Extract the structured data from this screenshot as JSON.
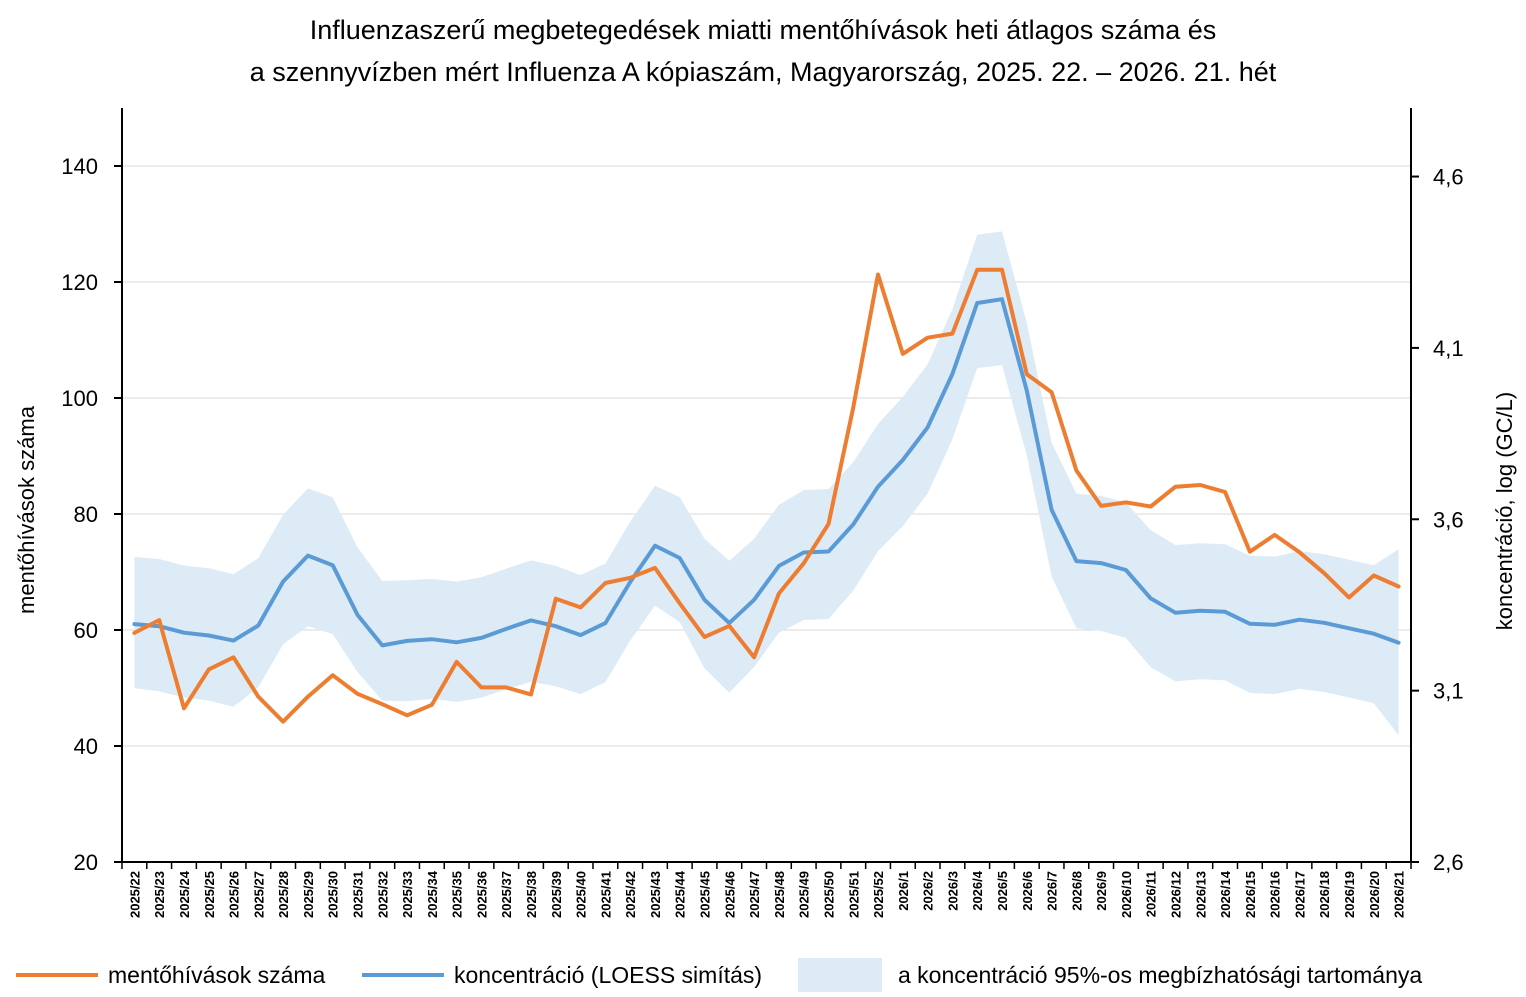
{
  "chart_data": {
    "type": "line",
    "title_line1": "Influenzaszerű megbetegedések miatti mentőhívások heti átlagos száma és",
    "title_line2": "a szennyvízben mért Influenza A kópiaszám, Magyarország, 2025. 22. – 2026. 21. hét",
    "ylabel": "mentőhívások száma",
    "y2label": "koncentráció, log (GC/L)",
    "ylim": [
      20,
      150
    ],
    "y2lim": [
      2.6,
      4.8
    ],
    "yticks": [
      20,
      40,
      60,
      80,
      100,
      120,
      140
    ],
    "y2ticks": [
      "2,6",
      "3,1",
      "3,6",
      "4,1",
      "4,6"
    ],
    "y2tick_values": [
      2.6,
      3.1,
      3.6,
      4.1,
      4.6
    ],
    "grid": true,
    "categories": [
      "2025/22",
      "2025/23",
      "2025/24",
      "2025/25",
      "2025/26",
      "2025/27",
      "2025/28",
      "2025/29",
      "2025/30",
      "2025/31",
      "2025/32",
      "2025/33",
      "2025/34",
      "2025/35",
      "2025/36",
      "2025/37",
      "2025/38",
      "2025/39",
      "2025/40",
      "2025/41",
      "2025/42",
      "2025/43",
      "2025/44",
      "2025/45",
      "2025/46",
      "2025/47",
      "2025/48",
      "2025/49",
      "2025/50",
      "2025/51",
      "2025/52",
      "2026/1",
      "2026/2",
      "2026/3",
      "2026/4",
      "2026/5",
      "2026/6",
      "2026/7",
      "2026/8",
      "2026/9",
      "2026/10",
      "2026/11",
      "2026/12",
      "2026/13",
      "2026/14",
      "2026/15",
      "2026/16",
      "2026/17",
      "2026/18",
      "2026/19",
      "2026/20",
      "2026/21"
    ],
    "series": [
      {
        "name": "mentőhívások száma",
        "axis": "left",
        "color": "#ED7D31",
        "values": [
          59.5,
          61.7,
          46.5,
          53.2,
          55.3,
          48.5,
          44.2,
          48.5,
          52.2,
          49.0,
          47.2,
          45.3,
          47.1,
          54.5,
          50.1,
          50.1,
          48.9,
          65.4,
          63.9,
          68.1,
          69.0,
          70.7,
          64.6,
          58.8,
          60.7,
          55.3,
          66.3,
          71.5,
          78.3,
          98.4,
          121.3,
          107.6,
          110.4,
          111.1,
          122.1,
          122.1,
          104.1,
          101.0,
          87.5,
          81.4,
          82.0,
          81.3,
          84.7,
          85.0,
          83.8,
          73.5,
          76.4,
          73.4,
          69.8,
          65.6,
          69.4,
          67.5
        ]
      },
      {
        "name": "koncentráció (LOESS simítás)",
        "axis": "right",
        "color": "#5B9BD5",
        "values": [
          3.294,
          3.288,
          3.269,
          3.261,
          3.246,
          3.29,
          3.418,
          3.494,
          3.466,
          3.321,
          3.232,
          3.245,
          3.25,
          3.241,
          3.254,
          3.28,
          3.305,
          3.288,
          3.262,
          3.297,
          3.417,
          3.523,
          3.487,
          3.365,
          3.297,
          3.365,
          3.464,
          3.503,
          3.506,
          3.585,
          3.695,
          3.773,
          3.868,
          4.024,
          4.231,
          4.242,
          3.975,
          3.628,
          3.478,
          3.472,
          3.452,
          3.369,
          3.327,
          3.333,
          3.33,
          3.295,
          3.292,
          3.307,
          3.298,
          3.282,
          3.266,
          3.24
        ]
      },
      {
        "name": "a koncentráció 95%-os megbízhatósági tartománya",
        "axis": "right",
        "color": "#DDEBF7",
        "lower": [
          3.107,
          3.098,
          3.08,
          3.071,
          3.053,
          3.11,
          3.235,
          3.288,
          3.265,
          3.154,
          3.071,
          3.069,
          3.076,
          3.067,
          3.079,
          3.104,
          3.126,
          3.113,
          3.09,
          3.125,
          3.246,
          3.348,
          3.3,
          3.165,
          3.094,
          3.169,
          3.269,
          3.306,
          3.309,
          3.392,
          3.507,
          3.58,
          3.675,
          3.833,
          4.041,
          4.05,
          3.786,
          3.433,
          3.282,
          3.274,
          3.254,
          3.168,
          3.127,
          3.133,
          3.13,
          3.093,
          3.09,
          3.105,
          3.096,
          3.08,
          3.063,
          2.97
        ],
        "upper": [
          3.49,
          3.484,
          3.465,
          3.457,
          3.44,
          3.486,
          3.613,
          3.69,
          3.664,
          3.518,
          3.42,
          3.422,
          3.426,
          3.418,
          3.431,
          3.456,
          3.48,
          3.464,
          3.437,
          3.471,
          3.593,
          3.698,
          3.665,
          3.543,
          3.479,
          3.543,
          3.642,
          3.685,
          3.688,
          3.767,
          3.878,
          3.957,
          4.052,
          4.213,
          4.43,
          4.44,
          4.173,
          3.824,
          3.675,
          3.668,
          3.649,
          3.568,
          3.525,
          3.53,
          3.527,
          3.494,
          3.491,
          3.507,
          3.498,
          3.482,
          3.466,
          3.513
        ]
      }
    ]
  },
  "legend": {
    "item1": "mentőhívások száma",
    "item2": "koncentráció (LOESS simítás)",
    "item3": "a koncentráció 95%-os megbízhatósági tartománya"
  },
  "colors": {
    "orange": "#ED7D31",
    "blue": "#5B9BD5",
    "band": "#DDEBF7",
    "grid": "#D9D9D9"
  }
}
